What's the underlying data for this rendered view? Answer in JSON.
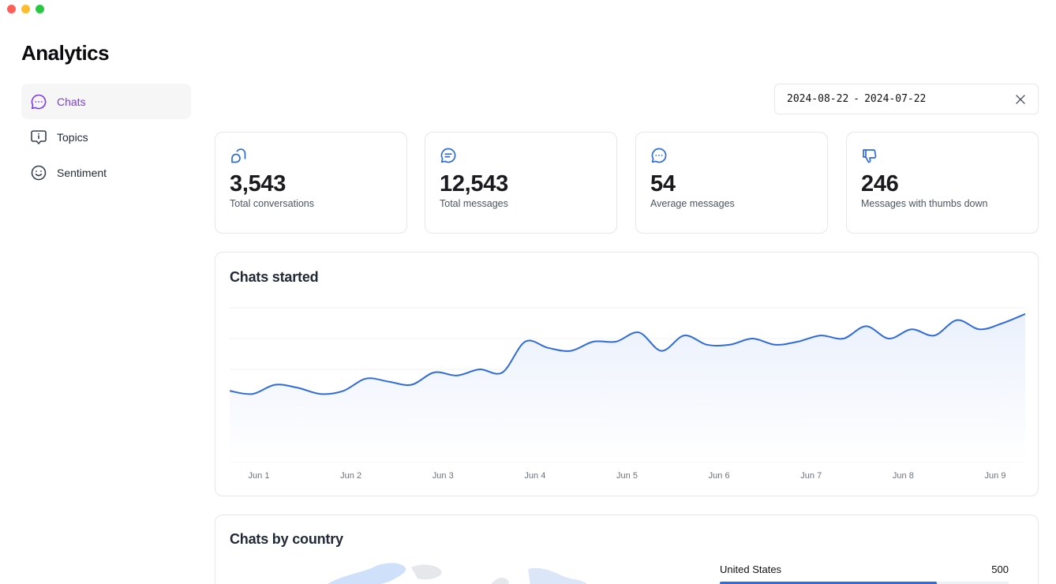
{
  "app": {
    "title": "Analytics"
  },
  "sidebar": {
    "items": [
      {
        "label": "Chats",
        "icon": "chat-bubble-dots-icon",
        "active": true
      },
      {
        "label": "Topics",
        "icon": "info-message-icon",
        "active": false
      },
      {
        "label": "Sentiment",
        "icon": "smiley-icon",
        "active": false
      }
    ]
  },
  "date_range": {
    "start": "2024-08-22",
    "separator": "-",
    "end": "2024-07-22"
  },
  "stats": [
    {
      "value": "3,543",
      "label": "Total conversations",
      "icon": "conversations-icon"
    },
    {
      "value": "12,543",
      "label": "Total messages",
      "icon": "message-lines-icon"
    },
    {
      "value": "54",
      "label": "Average messages",
      "icon": "message-dots-icon"
    },
    {
      "value": "246",
      "label": "Messages with thumbs down",
      "icon": "thumbs-down-icon"
    }
  ],
  "chats_started": {
    "title": "Chats started",
    "chart_data": {
      "type": "area",
      "title": "Chats started",
      "xlabel": "",
      "ylabel": "",
      "categories": [
        "Jun 1",
        "Jun 2",
        "Jun 3",
        "Jun 4",
        "Jun 5",
        "Jun 6",
        "Jun 7",
        "Jun 8",
        "Jun 9"
      ],
      "x": [
        0.0,
        0.25,
        0.5,
        0.75,
        1.0,
        1.25,
        1.5,
        1.75,
        2.0,
        2.25,
        2.5,
        2.75,
        3.0,
        3.25,
        3.5,
        3.75,
        4.0,
        4.25,
        4.5,
        4.75,
        5.0,
        5.25,
        5.5,
        5.75,
        6.0,
        6.25,
        6.5,
        6.75,
        7.0,
        7.25,
        7.5,
        7.75,
        8.0,
        8.25,
        8.5,
        8.75
      ],
      "values": [
        2.3,
        2.2,
        2.5,
        2.4,
        2.2,
        2.3,
        2.7,
        2.6,
        2.5,
        2.9,
        2.8,
        3.0,
        2.9,
        3.9,
        3.7,
        3.6,
        3.9,
        3.9,
        4.2,
        3.6,
        4.1,
        3.8,
        3.8,
        4.0,
        3.8,
        3.9,
        4.1,
        4.0,
        4.4,
        4.0,
        4.3,
        4.1,
        4.6,
        4.3,
        4.5,
        4.8
      ],
      "ylim": [
        0,
        5
      ],
      "grid": true,
      "legend": "none",
      "line_color": "#2f6bdc",
      "fill_color": "#eaf0fc"
    }
  },
  "chats_by_country": {
    "title": "Chats by country",
    "countries": [
      {
        "name": "United States",
        "value": "500",
        "fraction": 0.75,
        "color": "#2f6bdc"
      }
    ],
    "map_color": "#cfe0fb"
  }
}
